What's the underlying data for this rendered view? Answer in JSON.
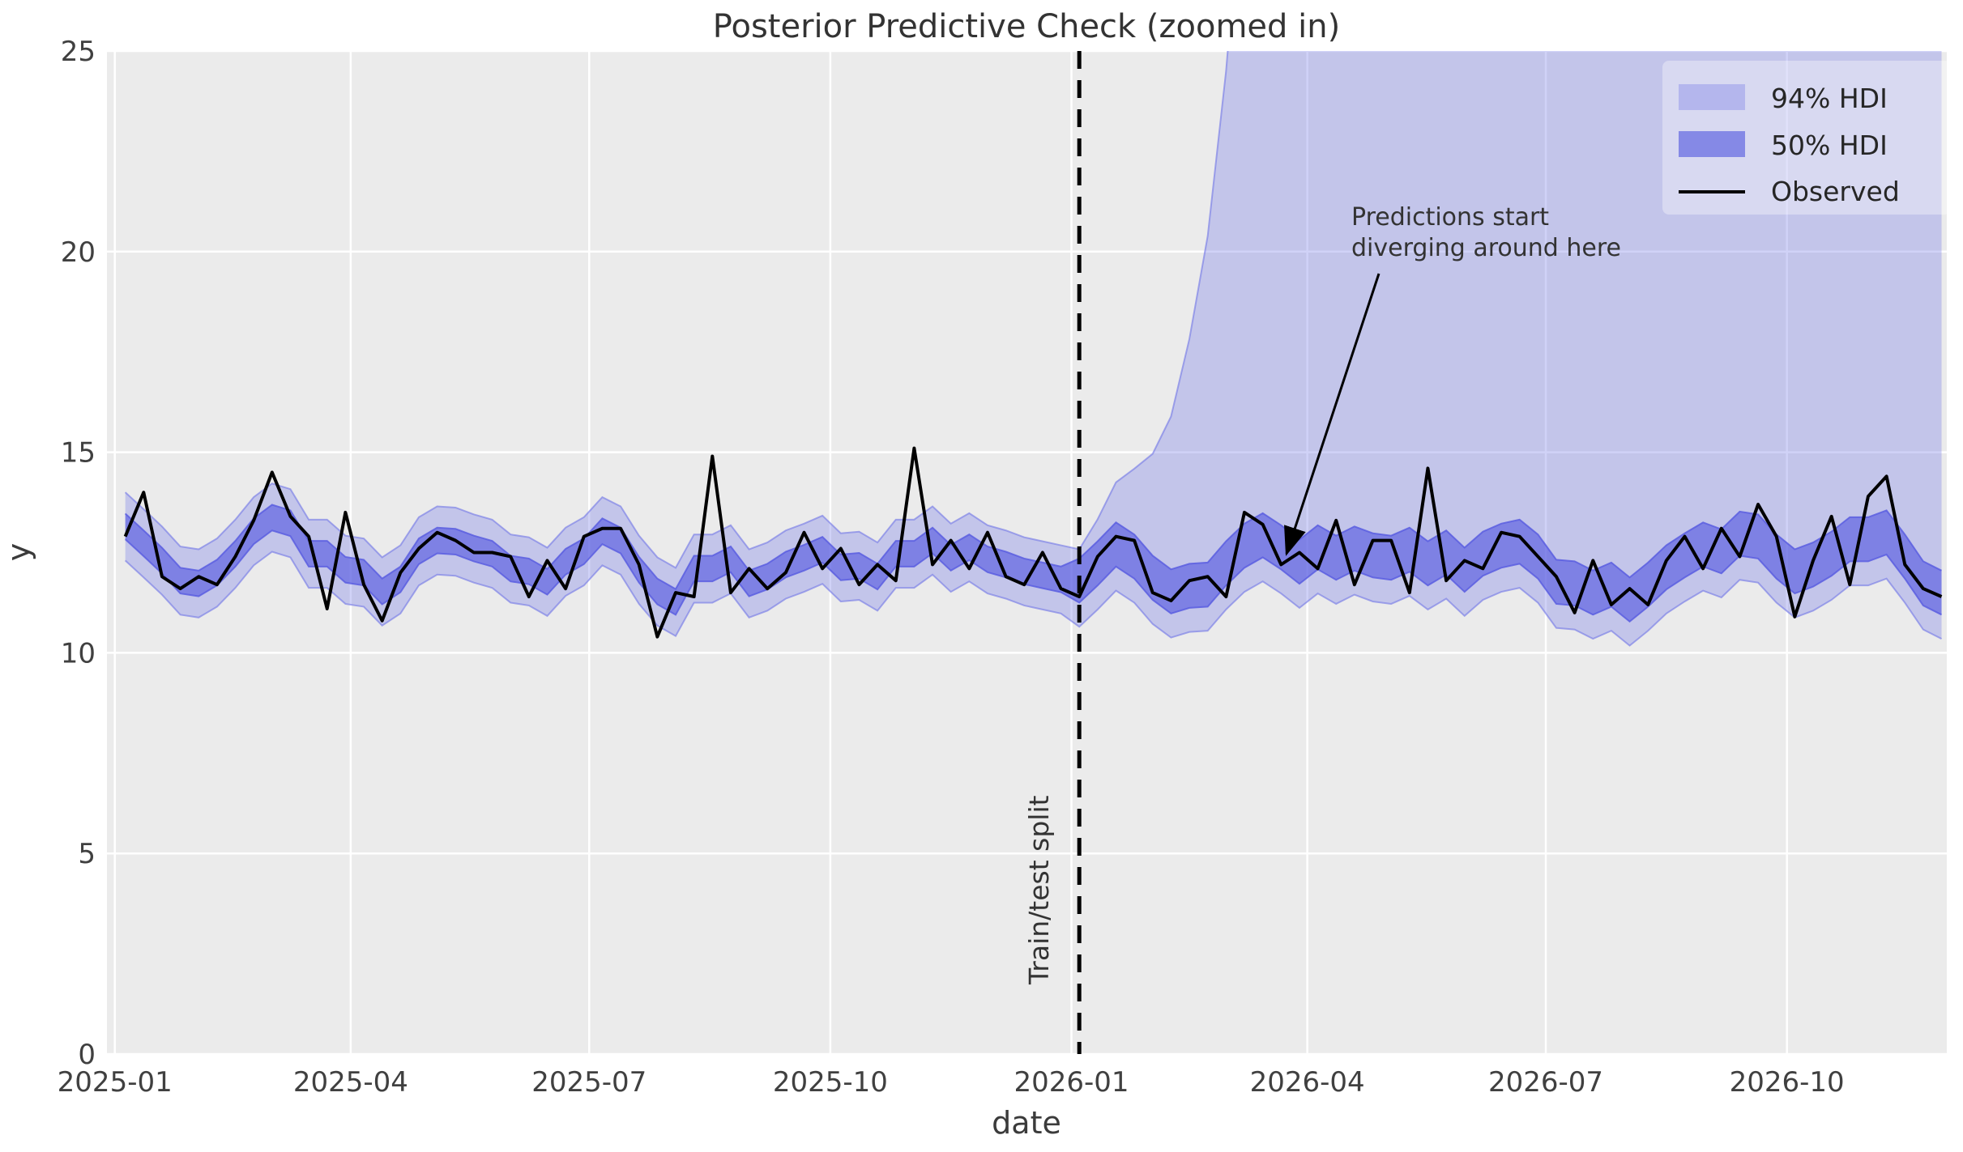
{
  "colors": {
    "plot_bg": "#ebebeb",
    "grid": "#ffffff",
    "hdi94_fill": "rgba(121,125,231,0.35)",
    "hdi94_edge": "rgba(120,124,230,0.65)",
    "hdi50_fill": "rgba(80,84,224,0.60)",
    "hdi50_edge": "rgba(90,94,225,0.85)",
    "hdi94_swatch": "#b4b6ed",
    "hdi94_swatch_edge": "#8d90e9",
    "hdi50_swatch": "#8589e6",
    "hdi50_swatch_edge": "#686ce0",
    "observed_line": "#000000",
    "split_line": "#000000",
    "annotation_arrow": "#000000",
    "legend_bg": "rgba(255,255,255,0.35)",
    "legend_edge": "rgba(204,204,204,0.8)"
  },
  "chart_data": {
    "type": "line",
    "title": "Posterior Predictive Check (zoomed in)",
    "xlabel": "date",
    "ylabel": "y",
    "ylim": [
      0,
      25
    ],
    "grid": true,
    "legend_position": "upper right",
    "x_axis_range": [
      "2024-12-29",
      "2026-12-01"
    ],
    "xtick_labels": [
      "2025-01",
      "2025-04",
      "2025-07",
      "2025-10",
      "2026-01",
      "2026-04",
      "2026-07",
      "2026-10"
    ],
    "xtick_dates": [
      "2025-01-01",
      "2025-04-01",
      "2025-07-01",
      "2025-10-01",
      "2026-01-01",
      "2026-04-01",
      "2026-07-01",
      "2026-10-01"
    ],
    "ytick_labels": [
      "0",
      "5",
      "10",
      "15",
      "20",
      "25"
    ],
    "ytick_values": [
      0,
      5,
      10,
      15,
      20,
      25
    ],
    "legend": {
      "hdi94": "94% HDI",
      "hdi50": "50% HDI",
      "observed": "Observed"
    },
    "annotation": {
      "line1": "Predictions start",
      "line2": "diverging around here"
    },
    "split_label": "Train/test split",
    "split_date": "2026-01-04",
    "x_start_date": "2025-01-05",
    "x_freq_days": 7,
    "n_points": 100,
    "series": {
      "observed": [
        12.9,
        14.0,
        11.9,
        11.6,
        11.9,
        11.7,
        12.4,
        13.3,
        14.5,
        13.4,
        12.9,
        11.1,
        13.5,
        11.7,
        10.8,
        12.0,
        12.6,
        13.0,
        12.8,
        12.5,
        12.5,
        12.4,
        11.4,
        12.3,
        11.6,
        12.9,
        13.1,
        13.1,
        12.2,
        10.4,
        11.5,
        11.4,
        14.9,
        11.5,
        12.1,
        11.6,
        12.0,
        13.0,
        12.1,
        12.6,
        11.7,
        12.2,
        11.8,
        15.1,
        12.2,
        12.8,
        12.1,
        13.0,
        11.9,
        11.7,
        12.5,
        11.6,
        11.4,
        12.4,
        12.9,
        12.8,
        11.5,
        11.3,
        11.8,
        11.9,
        11.4,
        13.5,
        13.2,
        12.2,
        12.5,
        12.1,
        13.3,
        11.7,
        12.8,
        12.8,
        11.5,
        14.6,
        11.8,
        12.3,
        12.1,
        13.0,
        12.9,
        12.4,
        11.9,
        11.0,
        12.3,
        11.2,
        11.6,
        11.2,
        12.3,
        12.9,
        12.1,
        13.1,
        12.4,
        13.7,
        12.9,
        10.9,
        12.3,
        13.4,
        11.7,
        13.9,
        14.4,
        12.2,
        11.6,
        11.4
      ],
      "hdi94_lower": [
        12.3,
        11.88,
        11.45,
        10.95,
        10.88,
        11.15,
        11.62,
        12.18,
        12.52,
        12.38,
        11.62,
        11.62,
        11.22,
        11.15,
        10.68,
        10.98,
        11.68,
        11.95,
        11.92,
        11.75,
        11.62,
        11.25,
        11.18,
        10.92,
        11.42,
        11.68,
        12.18,
        11.95,
        11.22,
        10.68,
        10.42,
        11.25,
        11.25,
        11.48,
        10.88,
        11.05,
        11.35,
        11.52,
        11.72,
        11.28,
        11.32,
        11.05,
        11.62,
        11.62,
        11.95,
        11.52,
        11.78,
        11.48,
        11.35,
        11.18,
        11.08,
        10.98,
        10.65,
        11.08,
        11.55,
        11.25,
        10.72,
        10.38,
        10.52,
        10.55,
        11.08,
        11.52,
        11.78,
        11.48,
        11.12,
        11.48,
        11.22,
        11.45,
        11.28,
        11.22,
        11.42,
        11.08,
        11.35,
        10.92,
        11.32,
        11.52,
        11.62,
        11.25,
        10.62,
        10.58,
        10.35,
        10.55,
        10.18,
        10.55,
        10.98,
        11.28,
        11.55,
        11.38,
        11.82,
        11.75,
        11.25,
        10.88,
        11.05,
        11.32,
        11.68,
        11.68,
        11.85,
        11.25,
        10.58,
        10.35
      ],
      "hdi94_upper": [
        14.0,
        13.58,
        13.15,
        12.65,
        12.58,
        12.85,
        13.32,
        13.88,
        14.22,
        14.08,
        13.32,
        13.32,
        12.92,
        12.85,
        12.38,
        12.68,
        13.38,
        13.65,
        13.62,
        13.45,
        13.32,
        12.95,
        12.88,
        12.62,
        13.12,
        13.38,
        13.88,
        13.65,
        12.92,
        12.38,
        12.12,
        12.95,
        12.95,
        13.18,
        12.58,
        12.75,
        13.05,
        13.22,
        13.42,
        12.98,
        13.02,
        12.75,
        13.32,
        13.32,
        13.65,
        13.22,
        13.48,
        13.18,
        13.05,
        12.88,
        12.78,
        12.68,
        12.58,
        13.33,
        14.25,
        14.59,
        14.96,
        15.89,
        17.82,
        20.39,
        24.5,
        30.0,
        37.4,
        47.19,
        60,
        60,
        60,
        60,
        60,
        60,
        60,
        60,
        60,
        60,
        60,
        60,
        60,
        60,
        60,
        60,
        60,
        60,
        60,
        60,
        60,
        60,
        60,
        60,
        60,
        60,
        60,
        60,
        60,
        60,
        60,
        60,
        60,
        60,
        60,
        60
      ],
      "hdi50_lower": [
        12.83,
        12.41,
        11.98,
        11.48,
        11.41,
        11.68,
        12.15,
        12.71,
        13.05,
        12.91,
        12.15,
        12.15,
        11.75,
        11.68,
        11.21,
        11.51,
        12.21,
        12.48,
        12.45,
        12.28,
        12.15,
        11.78,
        11.71,
        11.45,
        11.95,
        12.21,
        12.71,
        12.48,
        11.75,
        11.21,
        10.95,
        11.78,
        11.78,
        12.01,
        11.41,
        11.58,
        11.88,
        12.05,
        12.25,
        11.81,
        11.85,
        11.58,
        12.15,
        12.15,
        12.48,
        12.05,
        12.31,
        12.01,
        11.88,
        11.71,
        11.61,
        11.51,
        11.25,
        11.68,
        12.15,
        11.85,
        11.32,
        10.98,
        11.12,
        11.15,
        11.68,
        12.12,
        12.38,
        12.08,
        11.72,
        12.08,
        11.82,
        12.05,
        11.88,
        11.82,
        12.02,
        11.68,
        11.95,
        11.52,
        11.92,
        12.12,
        12.22,
        11.85,
        11.22,
        11.18,
        10.95,
        11.15,
        10.78,
        11.15,
        11.58,
        11.88,
        12.15,
        11.98,
        12.42,
        12.35,
        11.85,
        11.48,
        11.65,
        11.92,
        12.28,
        12.28,
        12.45,
        11.85,
        11.18,
        10.95
      ],
      "hdi50_upper": [
        13.47,
        13.05,
        12.62,
        12.12,
        12.05,
        12.32,
        12.79,
        13.35,
        13.69,
        13.55,
        12.79,
        12.79,
        12.39,
        12.32,
        11.85,
        12.15,
        12.85,
        13.12,
        13.09,
        12.92,
        12.79,
        12.42,
        12.35,
        12.09,
        12.59,
        12.85,
        13.35,
        13.12,
        12.39,
        11.85,
        11.59,
        12.42,
        12.42,
        12.65,
        12.05,
        12.22,
        12.52,
        12.69,
        12.89,
        12.45,
        12.49,
        12.22,
        12.79,
        12.79,
        13.12,
        12.69,
        12.95,
        12.65,
        12.52,
        12.35,
        12.25,
        12.15,
        12.35,
        12.78,
        13.25,
        12.95,
        12.42,
        12.08,
        12.22,
        12.25,
        12.78,
        13.22,
        13.48,
        13.18,
        12.82,
        13.18,
        12.92,
        13.15,
        12.98,
        12.92,
        13.12,
        12.78,
        13.05,
        12.62,
        13.02,
        13.22,
        13.32,
        12.95,
        12.32,
        12.28,
        12.05,
        12.25,
        11.88,
        12.25,
        12.68,
        12.98,
        13.25,
        13.08,
        13.52,
        13.45,
        12.95,
        12.58,
        12.75,
        13.02,
        13.38,
        13.38,
        13.55,
        12.95,
        12.28,
        12.05
      ]
    }
  }
}
